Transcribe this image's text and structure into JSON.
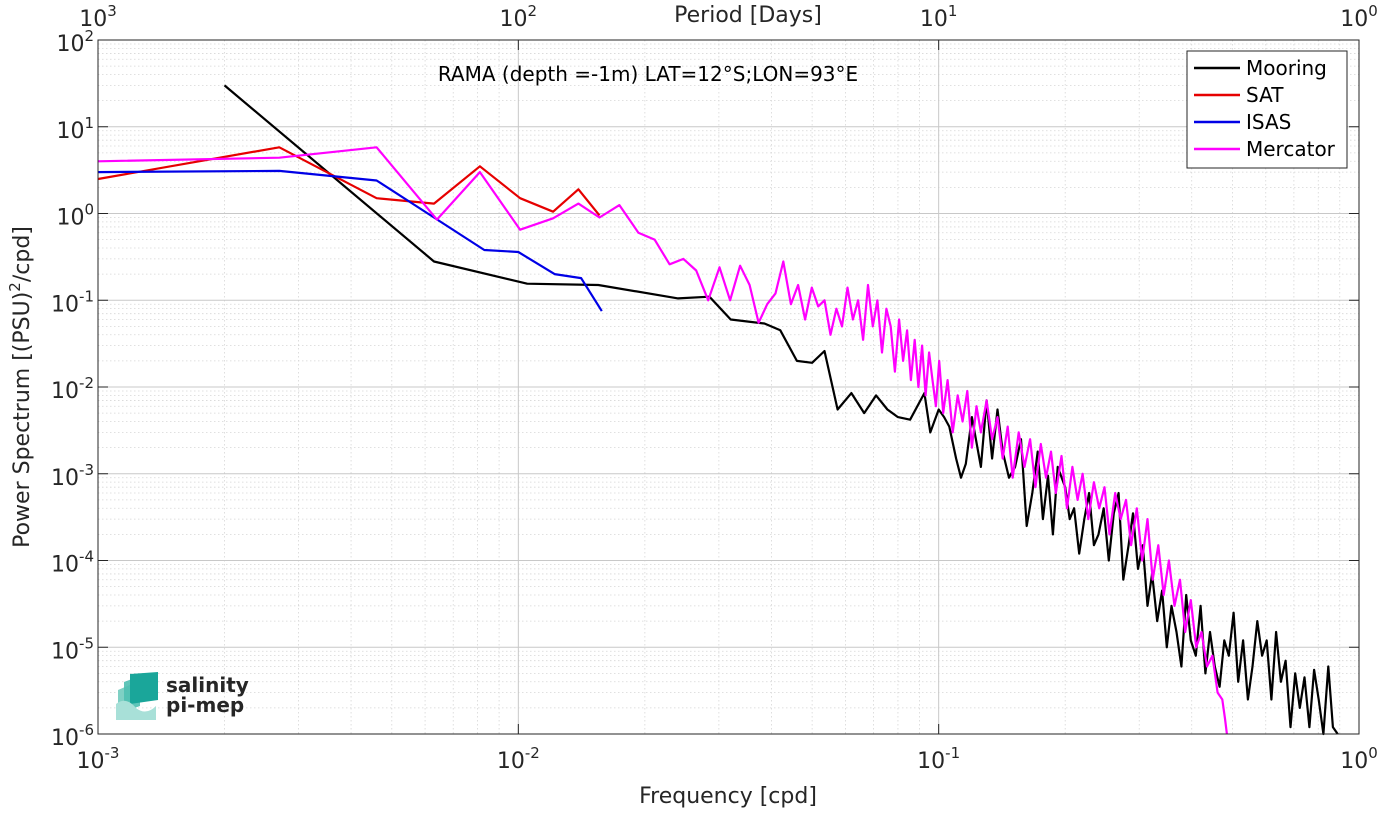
{
  "chart_data": {
    "type": "line",
    "title": "",
    "annotation": "RAMA (depth =-1m) LAT=12°S;LON=93°E",
    "xlabel": "Frequency [cpd]",
    "ylabel": "Power Spectrum [(PSU)",
    "ylabel_sup": "2",
    "ylabel_tail": "/cpd]",
    "top_xlabel": "Period [Days]",
    "xscale": "log",
    "yscale": "log",
    "xlim": [
      0.001,
      1
    ],
    "ylim": [
      1e-06,
      100
    ],
    "grid": true,
    "legend_position": "top-right",
    "x_ticks": [
      {
        "value": 0.001,
        "base": "10",
        "exp": "-3"
      },
      {
        "value": 0.01,
        "base": "10",
        "exp": "-2"
      },
      {
        "value": 0.1,
        "base": "10",
        "exp": "-1"
      },
      {
        "value": 1,
        "base": "10",
        "exp": "0"
      }
    ],
    "top_ticks": [
      {
        "value": 0.001,
        "base": "10",
        "exp": "3"
      },
      {
        "value": 0.01,
        "base": "10",
        "exp": "2"
      },
      {
        "value": 0.1,
        "base": "10",
        "exp": "1"
      },
      {
        "value": 1,
        "base": "10",
        "exp": "0"
      }
    ],
    "y_ticks": [
      {
        "value": 1e-06,
        "base": "10",
        "exp": "-6"
      },
      {
        "value": 1e-05,
        "base": "10",
        "exp": "-5"
      },
      {
        "value": 0.0001,
        "base": "10",
        "exp": "-4"
      },
      {
        "value": 0.001,
        "base": "10",
        "exp": "-3"
      },
      {
        "value": 0.01,
        "base": "10",
        "exp": "-2"
      },
      {
        "value": 0.1,
        "base": "10",
        "exp": "-1"
      },
      {
        "value": 1,
        "base": "10",
        "exp": "0"
      },
      {
        "value": 10,
        "base": "10",
        "exp": "1"
      },
      {
        "value": 100,
        "base": "10",
        "exp": "2"
      }
    ],
    "series": [
      {
        "name": "Mooring",
        "color": "#000000",
        "x": [
          0.002,
          0.0063,
          0.0105,
          0.0155,
          0.024,
          0.0285,
          0.032,
          0.0385,
          0.042,
          0.046,
          0.05,
          0.0535,
          0.0575,
          0.062,
          0.0665,
          0.071,
          0.0755,
          0.08,
          0.0855,
          0.0925,
          0.0955,
          0.1,
          0.103,
          0.106,
          0.11,
          0.113,
          0.116,
          0.12,
          0.126,
          0.13,
          0.134,
          0.138,
          0.142,
          0.147,
          0.152,
          0.157,
          0.162,
          0.167,
          0.172,
          0.177,
          0.182,
          0.187,
          0.192,
          0.2,
          0.205,
          0.21,
          0.216,
          0.222,
          0.228,
          0.234,
          0.24,
          0.247,
          0.254,
          0.261,
          0.268,
          0.275,
          0.283,
          0.29,
          0.298,
          0.306,
          0.314,
          0.322,
          0.331,
          0.34,
          0.349,
          0.358,
          0.368,
          0.378,
          0.388,
          0.398,
          0.409,
          0.42,
          0.431,
          0.442,
          0.454,
          0.466,
          0.478,
          0.49,
          0.503,
          0.516,
          0.53,
          0.544,
          0.558,
          0.573,
          0.588,
          0.603,
          0.619,
          0.635,
          0.652,
          0.669,
          0.687,
          0.705,
          0.723,
          0.742,
          0.762,
          0.782,
          0.802,
          0.823,
          0.845,
          0.867,
          0.89
        ],
        "y": [
          30,
          0.28,
          0.155,
          0.15,
          0.105,
          0.11,
          0.06,
          0.054,
          0.045,
          0.02,
          0.019,
          0.026,
          0.0055,
          0.0085,
          0.005,
          0.008,
          0.0055,
          0.0045,
          0.0042,
          0.0085,
          0.003,
          0.0055,
          0.0045,
          0.0035,
          0.0015,
          0.0009,
          0.0013,
          0.0045,
          0.0012,
          0.007,
          0.0015,
          0.0055,
          0.0018,
          0.0009,
          0.0012,
          0.0025,
          0.00025,
          0.0006,
          0.0018,
          0.0003,
          0.00095,
          0.0002,
          0.0012,
          0.0007,
          0.0003,
          0.0004,
          0.00012,
          0.0003,
          0.0006,
          0.00015,
          0.0002,
          0.0004,
          0.0001,
          0.00035,
          0.0006,
          6e-05,
          0.00015,
          0.00035,
          8e-05,
          0.00015,
          3e-05,
          7e-05,
          2e-05,
          4.5e-05,
          1e-05,
          3e-05,
          1.5e-05,
          6e-06,
          4e-05,
          1.2e-05,
          8e-06,
          3e-05,
          5e-06,
          1.5e-05,
          6e-06,
          3.5e-06,
          1.2e-05,
          8e-06,
          2.5e-05,
          4e-06,
          1.2e-05,
          2.5e-06,
          6e-06,
          2e-05,
          8e-06,
          1.2e-05,
          2.5e-06,
          1.5e-05,
          4e-06,
          7e-06,
          1.2e-06,
          5e-06,
          2e-06,
          4.5e-06,
          1.2e-06,
          5.5e-06,
          2.5e-06,
          1e-06,
          6e-06,
          1.2e-06,
          1e-06
        ]
      },
      {
        "name": "SAT",
        "color": "#e60000",
        "x": [
          0.001,
          0.0027,
          0.0046,
          0.0063,
          0.0081,
          0.0101,
          0.0121,
          0.0139,
          0.0156
        ],
        "y": [
          2.5,
          5.8,
          1.5,
          1.3,
          3.5,
          1.5,
          1.05,
          1.9,
          0.95
        ]
      },
      {
        "name": "ISAS",
        "color": "#0000e6",
        "x": [
          0.001,
          0.0027,
          0.0046,
          0.0063,
          0.0083,
          0.01,
          0.0122,
          0.0141,
          0.0158
        ],
        "y": [
          3.0,
          3.1,
          2.4,
          0.9,
          0.38,
          0.36,
          0.2,
          0.18,
          0.075
        ]
      },
      {
        "name": "Mercator",
        "color": "#ff00ff",
        "x": [
          0.001,
          0.0027,
          0.0046,
          0.0064,
          0.0081,
          0.0101,
          0.0121,
          0.0139,
          0.0156,
          0.0174,
          0.0193,
          0.0211,
          0.0229,
          0.0247,
          0.0265,
          0.0283,
          0.0301,
          0.0319,
          0.0337,
          0.0355,
          0.0373,
          0.0391,
          0.0409,
          0.0427,
          0.0445,
          0.0463,
          0.0481,
          0.0499,
          0.0517,
          0.0535,
          0.0553,
          0.0571,
          0.0589,
          0.0607,
          0.0625,
          0.0643,
          0.0661,
          0.0679,
          0.0697,
          0.0715,
          0.0733,
          0.0751,
          0.0769,
          0.0787,
          0.0805,
          0.0823,
          0.0841,
          0.0859,
          0.0877,
          0.0895,
          0.0913,
          0.0931,
          0.0949,
          0.0967,
          0.0985,
          0.1003,
          0.1025,
          0.105,
          0.108,
          0.111,
          0.114,
          0.117,
          0.12,
          0.123,
          0.126,
          0.13,
          0.134,
          0.138,
          0.142,
          0.146,
          0.15,
          0.155,
          0.16,
          0.165,
          0.17,
          0.175,
          0.18,
          0.185,
          0.19,
          0.196,
          0.202,
          0.208,
          0.214,
          0.22,
          0.227,
          0.234,
          0.241,
          0.248,
          0.255,
          0.263,
          0.271,
          0.279,
          0.287,
          0.296,
          0.305,
          0.314,
          0.323,
          0.333,
          0.343,
          0.353,
          0.364,
          0.375,
          0.386,
          0.398,
          0.41,
          0.422,
          0.435,
          0.448,
          0.461,
          0.473,
          0.48,
          0.485
        ],
        "y": [
          4.0,
          4.4,
          5.8,
          0.85,
          3.0,
          0.65,
          0.88,
          1.3,
          0.9,
          1.25,
          0.6,
          0.5,
          0.26,
          0.3,
          0.22,
          0.1,
          0.24,
          0.1,
          0.25,
          0.15,
          0.055,
          0.09,
          0.12,
          0.28,
          0.09,
          0.15,
          0.06,
          0.14,
          0.085,
          0.1,
          0.04,
          0.08,
          0.05,
          0.14,
          0.06,
          0.1,
          0.035,
          0.15,
          0.05,
          0.1,
          0.025,
          0.08,
          0.05,
          0.015,
          0.06,
          0.02,
          0.045,
          0.012,
          0.035,
          0.01,
          0.03,
          0.008,
          0.025,
          0.012,
          0.006,
          0.02,
          0.005,
          0.012,
          0.003,
          0.008,
          0.004,
          0.009,
          0.002,
          0.006,
          0.003,
          0.007,
          0.0025,
          0.0045,
          0.0015,
          0.0035,
          0.0009,
          0.003,
          0.0012,
          0.0025,
          0.0007,
          0.0022,
          0.0009,
          0.0018,
          0.0006,
          0.0016,
          0.0004,
          0.0012,
          0.0005,
          0.001,
          0.0003,
          0.0008,
          0.0004,
          0.0007,
          0.0002,
          0.0006,
          0.0003,
          0.0005,
          0.00015,
          0.0004,
          0.0001,
          0.0003,
          6e-05,
          0.00015,
          4e-05,
          0.0001,
          3e-05,
          6e-05,
          1.5e-05,
          3.5e-05,
          1e-05,
          1.5e-05,
          6e-06,
          8e-06,
          3e-06,
          2.5e-06,
          1.5e-06,
          1e-06
        ]
      }
    ]
  },
  "logo": {
    "line1": "salinity",
    "line2": "pi-mep",
    "color": "#1aa69a"
  }
}
